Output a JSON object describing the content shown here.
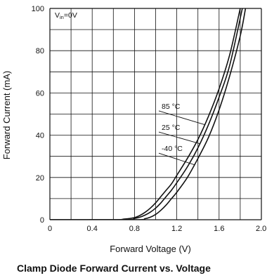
{
  "chart_data": {
    "type": "line",
    "title": "Clamp Diode Forward Current vs. Voltage",
    "xlabel": "Forward Voltage (V)",
    "ylabel": "Forward Current (mA)",
    "xlim": [
      0,
      2.0
    ],
    "ylim": [
      0,
      100
    ],
    "x_ticks": [
      "0",
      "0.4",
      "0.8",
      "1.2",
      "1.6",
      "2.0"
    ],
    "y_ticks": [
      "0",
      "20",
      "40",
      "60",
      "80",
      "100"
    ],
    "grid": true,
    "condition_label": {
      "main": "V",
      "sub": "in",
      "rest": "=0V"
    },
    "series": [
      {
        "name": "85 °C",
        "x": [
          0.6,
          0.7,
          0.8,
          0.85,
          0.9,
          0.95,
          1.0,
          1.05,
          1.1,
          1.15,
          1.2,
          1.3,
          1.4,
          1.5,
          1.6,
          1.7,
          1.8
        ],
        "y": [
          0,
          0.3,
          1.0,
          2.0,
          3.5,
          5.5,
          8.0,
          11.0,
          14.0,
          17.0,
          21.0,
          29.0,
          38.0,
          49.0,
          62.0,
          78.0,
          100
        ]
      },
      {
        "name": "25 °C",
        "x": [
          0.7,
          0.8,
          0.85,
          0.9,
          0.95,
          1.0,
          1.05,
          1.1,
          1.15,
          1.2,
          1.3,
          1.4,
          1.5,
          1.6,
          1.7,
          1.82
        ],
        "y": [
          0,
          0.6,
          1.2,
          2.2,
          3.6,
          5.5,
          8.0,
          11.0,
          14.0,
          17.5,
          25.0,
          34.0,
          45.0,
          58.0,
          73.0,
          100
        ]
      },
      {
        "name": "-40 °C",
        "x": [
          0.8,
          0.9,
          0.95,
          1.0,
          1.05,
          1.1,
          1.15,
          1.2,
          1.3,
          1.4,
          1.5,
          1.6,
          1.7,
          1.8,
          1.85
        ],
        "y": [
          0,
          0.5,
          1.2,
          2.5,
          4.5,
          7.0,
          10.0,
          13.0,
          20.0,
          29.0,
          39.0,
          52.0,
          68.0,
          87.0,
          100
        ]
      }
    ],
    "annotations": [
      {
        "text": "85 °C",
        "series": "85 °C",
        "label_x": 1.03,
        "label_y": 51.5,
        "target_y": 45
      },
      {
        "text": "25 °C",
        "series": "25 °C",
        "label_x": 1.03,
        "label_y": 41.5,
        "target_y": 36
      },
      {
        "text": "-40 °C",
        "series": "-40 °C",
        "label_x": 1.03,
        "label_y": 31.5,
        "target_y": 26
      }
    ]
  }
}
